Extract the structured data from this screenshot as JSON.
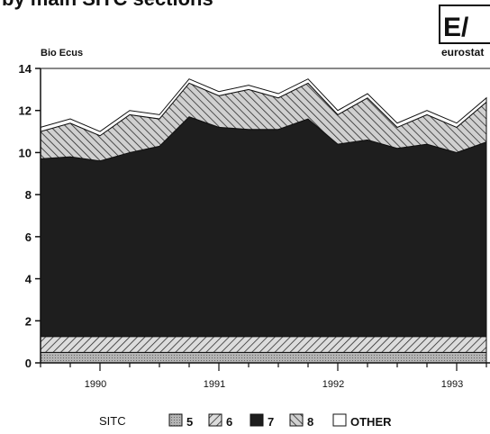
{
  "chart_data": {
    "type": "stacked_area",
    "title": "by main SITC sections",
    "y_axis_label": "Bio Ecus",
    "logo": {
      "mark": "E/",
      "text": "eurostat"
    },
    "legend_title": "SITC",
    "categories": [
      null,
      null,
      "1990",
      null,
      null,
      null,
      "1991",
      null,
      null,
      null,
      "1992",
      null,
      null,
      null,
      "1993",
      null
    ],
    "ylim": [
      0,
      14
    ],
    "yticks": [
      0,
      2,
      4,
      6,
      8,
      10,
      12,
      14
    ],
    "series": [
      {
        "name": "5",
        "color": "#b4b4b4",
        "values": [
          0.5,
          0.5,
          0.5,
          0.5,
          0.5,
          0.5,
          0.5,
          0.5,
          0.5,
          0.5,
          0.5,
          0.5,
          0.5,
          0.5,
          0.5,
          0.5
        ]
      },
      {
        "name": "6",
        "color": "#dcdcdc",
        "values": [
          0.75,
          0.75,
          0.75,
          0.75,
          0.75,
          0.75,
          0.75,
          0.75,
          0.75,
          0.75,
          0.75,
          0.75,
          0.75,
          0.75,
          0.75,
          0.75
        ]
      },
      {
        "name": "7",
        "color": "#1e1e1e",
        "values": [
          8.45,
          8.55,
          8.35,
          8.75,
          9.05,
          10.45,
          9.95,
          9.85,
          9.85,
          10.35,
          9.15,
          9.35,
          8.95,
          9.15,
          8.75,
          9.25
        ]
      },
      {
        "name": "8",
        "color": "#d0d0d0",
        "values": [
          1.3,
          1.6,
          1.2,
          1.8,
          1.3,
          1.6,
          1.5,
          1.9,
          1.5,
          1.7,
          1.4,
          2.0,
          1.0,
          1.4,
          1.2,
          1.9
        ]
      },
      {
        "name": "OTHER",
        "color": "#ffffff",
        "values": [
          0.2,
          0.2,
          0.2,
          0.2,
          0.2,
          0.2,
          0.2,
          0.2,
          0.2,
          0.2,
          0.2,
          0.2,
          0.2,
          0.2,
          0.2,
          0.2
        ]
      }
    ]
  }
}
